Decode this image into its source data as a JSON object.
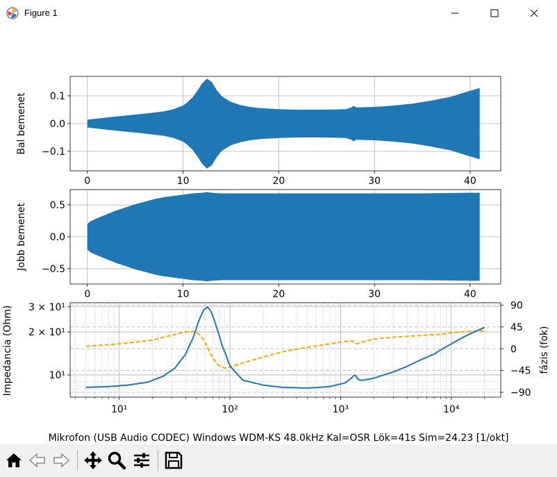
{
  "window": {
    "title": "Figure 1",
    "icon": "matplotlib-icon",
    "controls": [
      "minimize-icon",
      "maximize-icon",
      "close-icon"
    ]
  },
  "figure": {
    "caption": "Mikrofon (USB Audio CODEC) Windows WDM-KS 48.0kHz Kal=OSR Lök=41s Sim=24.23 [1/okt]"
  },
  "toolbar": {
    "buttons": [
      "home-icon",
      "back-icon",
      "forward-icon",
      "pan-icon",
      "zoom-icon",
      "configure-subplots-icon",
      "save-icon"
    ]
  },
  "colors": {
    "signal": "#1f77b4",
    "phase": "#ffa500",
    "grid": "#b0b0b0"
  },
  "chart_data": [
    {
      "type": "area",
      "ylabel": "Bal bemenet",
      "xlim": [
        -1.8,
        43.2
      ],
      "ylim": [
        -0.17,
        0.17
      ],
      "xticks": [
        0,
        10,
        20,
        30,
        40
      ],
      "yticks": [
        0.1,
        0.0,
        -0.1
      ],
      "xtick_labels": [
        "0",
        "10",
        "20",
        "30",
        "40"
      ],
      "ytick_labels": [
        "0.1",
        "0.0",
        "−0.1"
      ],
      "grid": true,
      "envelope": {
        "x": [
          0,
          2,
          4,
          6,
          8,
          9,
          10,
          10.5,
          11,
          11.5,
          12,
          12.5,
          13,
          13.5,
          14,
          14.5,
          15,
          16,
          17,
          18,
          20,
          22,
          24,
          26,
          27,
          27.6,
          27.8,
          28.1,
          30,
          32,
          34,
          36,
          38,
          40,
          41
        ],
        "amplitude": [
          0.014,
          0.022,
          0.029,
          0.036,
          0.044,
          0.052,
          0.065,
          0.078,
          0.095,
          0.118,
          0.145,
          0.162,
          0.15,
          0.122,
          0.1,
          0.088,
          0.078,
          0.067,
          0.06,
          0.056,
          0.052,
          0.05,
          0.05,
          0.051,
          0.052,
          0.058,
          0.064,
          0.058,
          0.06,
          0.065,
          0.072,
          0.083,
          0.097,
          0.118,
          0.128
        ]
      }
    },
    {
      "type": "area",
      "ylabel": "Jobb bemenet",
      "xlim": [
        -1.8,
        43.2
      ],
      "ylim": [
        -0.74,
        0.74
      ],
      "xticks": [
        0,
        10,
        20,
        30,
        40
      ],
      "yticks": [
        0.5,
        0.0,
        -0.5
      ],
      "xtick_labels": [
        "0",
        "10",
        "20",
        "30",
        "40"
      ],
      "ytick_labels": [
        "0.5",
        "0.0",
        "−0.5"
      ],
      "grid": true,
      "envelope": {
        "x": [
          0,
          0.3,
          1,
          2,
          3,
          4,
          5,
          6,
          7,
          8,
          9,
          10,
          11,
          12,
          12.5,
          13,
          14,
          16,
          20,
          25,
          30,
          35,
          40,
          41
        ],
        "amplitude": [
          0.2,
          0.24,
          0.29,
          0.35,
          0.41,
          0.46,
          0.51,
          0.55,
          0.59,
          0.62,
          0.64,
          0.66,
          0.68,
          0.69,
          0.7,
          0.69,
          0.68,
          0.68,
          0.68,
          0.68,
          0.68,
          0.68,
          0.69,
          0.69
        ]
      }
    },
    {
      "type": "line",
      "xscale": "log",
      "yscale": "log",
      "ylabel": "Impedancia (Ohm)",
      "y2label": "fázis (fok)",
      "xlim": [
        3.6,
        28000
      ],
      "ylim": [
        7.0,
        32.0
      ],
      "y2lim": [
        -100,
        95
      ],
      "xticks": [
        10,
        100,
        1000,
        10000
      ],
      "xtick_labels": [
        "10¹",
        "10²",
        "10³",
        "10⁴"
      ],
      "yticks": [
        10,
        20,
        30
      ],
      "ytick_labels": [
        "10¹",
        "2 × 10¹",
        "3 × 10¹"
      ],
      "y2ticks": [
        90,
        45,
        0,
        -45,
        -90
      ],
      "y2tick_labels": [
        "90",
        "45",
        "0",
        "−45",
        "−90"
      ],
      "grid": true,
      "series": [
        {
          "style": "solid",
          "axis": "left",
          "x": [
            5,
            8,
            12,
            18,
            25,
            32,
            40,
            47,
            53,
            58,
            63,
            68,
            75,
            85,
            100,
            130,
            200,
            300,
            500,
            800,
            1100,
            1250,
            1350,
            1400,
            1450,
            1600,
            2000,
            3000,
            4000,
            5000,
            7000,
            10000,
            14000,
            20000
          ],
          "y": [
            8.2,
            8.3,
            8.5,
            8.9,
            9.8,
            11.2,
            14.0,
            18.5,
            24.5,
            28.5,
            30.0,
            27.5,
            22.0,
            16.0,
            11.5,
            9.2,
            8.5,
            8.2,
            8.1,
            8.3,
            8.8,
            9.5,
            10.1,
            9.6,
            9.2,
            9.2,
            9.5,
            10.5,
            11.5,
            12.5,
            14.0,
            16.5,
            19.0,
            21.5
          ]
        },
        {
          "style": "dashed",
          "axis": "right",
          "x": [
            5,
            10,
            20,
            30,
            40,
            45,
            50,
            55,
            60,
            70,
            80,
            90,
            100,
            120,
            150,
            200,
            300,
            500,
            800,
            1100,
            1300,
            1350,
            1400,
            1500,
            2000,
            3000,
            5000,
            8000,
            10000,
            15000,
            20000
          ],
          "y": [
            5,
            10,
            18,
            28,
            35,
            36,
            34,
            26,
            12,
            -20,
            -36,
            -40,
            -38,
            -32,
            -25,
            -17,
            -6,
            3,
            10,
            15,
            16,
            13,
            9,
            13,
            20,
            24,
            27,
            30,
            33,
            36,
            37
          ]
        }
      ]
    }
  ]
}
